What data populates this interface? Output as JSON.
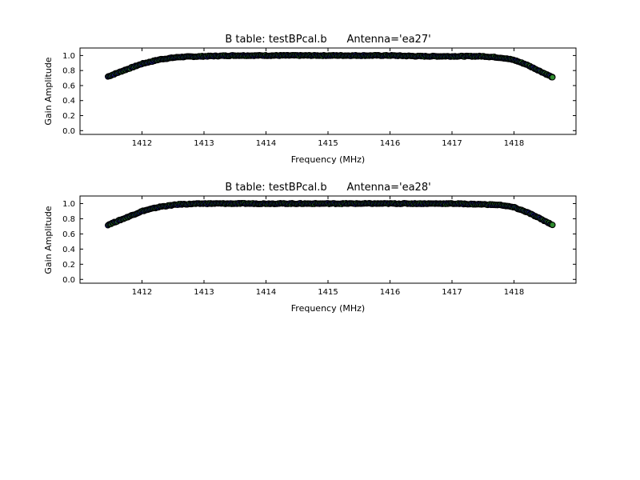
{
  "chart_data": [
    {
      "type": "scatter",
      "title": "B table: testBPcal.b      Antenna='ea27'",
      "xlabel": "Frequency (MHz)",
      "ylabel": "Gain Amplitude",
      "xlim": [
        1411.0,
        1419.0
      ],
      "ylim": [
        -0.05,
        1.1
      ],
      "xticks": [
        1412,
        1413,
        1414,
        1415,
        1416,
        1417,
        1418
      ],
      "yticks": [
        0.0,
        0.2,
        0.4,
        0.6,
        0.8,
        1.0
      ],
      "xtick_labels": [
        "1412",
        "1413",
        "1414",
        "1415",
        "1416",
        "1417",
        "1418"
      ],
      "ytick_labels": [
        "0.0",
        "0.2",
        "0.4",
        "0.6",
        "0.8",
        "1.0"
      ],
      "grid": false,
      "marker_fill_colors": [
        "#1f1f9f",
        "#2e8b2e"
      ],
      "marker_edge_color": "#000000",
      "series": [
        {
          "x": [
            1411.45,
            1411.7,
            1412.0,
            1412.3,
            1412.6,
            1413.0,
            1413.5,
            1414.0,
            1414.5,
            1415.0,
            1415.5,
            1416.0,
            1416.5,
            1417.0,
            1417.5,
            1417.8,
            1418.0,
            1418.2,
            1418.4,
            1418.62
          ],
          "y": [
            0.72,
            0.8,
            0.89,
            0.95,
            0.98,
            0.99,
            1.0,
            1.0,
            1.0,
            1.0,
            1.0,
            1.0,
            0.99,
            0.99,
            0.99,
            0.97,
            0.94,
            0.88,
            0.8,
            0.71
          ]
        }
      ]
    },
    {
      "type": "scatter",
      "title": "B table: testBPcal.b      Antenna='ea28'",
      "xlabel": "Frequency (MHz)",
      "ylabel": "Gain Amplitude",
      "xlim": [
        1411.0,
        1419.0
      ],
      "ylim": [
        -0.05,
        1.1
      ],
      "xticks": [
        1412,
        1413,
        1414,
        1415,
        1416,
        1417,
        1418
      ],
      "yticks": [
        0.0,
        0.2,
        0.4,
        0.6,
        0.8,
        1.0
      ],
      "xtick_labels": [
        "1412",
        "1413",
        "1414",
        "1415",
        "1416",
        "1417",
        "1418"
      ],
      "ytick_labels": [
        "0.0",
        "0.2",
        "0.4",
        "0.6",
        "0.8",
        "1.0"
      ],
      "grid": false,
      "marker_fill_colors": [
        "#1f1f9f",
        "#2e8b2e"
      ],
      "marker_edge_color": "#000000",
      "series": [
        {
          "x": [
            1411.45,
            1411.7,
            1412.0,
            1412.3,
            1412.6,
            1413.0,
            1413.5,
            1414.0,
            1414.5,
            1415.0,
            1415.5,
            1416.0,
            1416.5,
            1417.0,
            1417.5,
            1417.8,
            1418.0,
            1418.2,
            1418.4,
            1418.62
          ],
          "y": [
            0.72,
            0.8,
            0.9,
            0.96,
            0.99,
            1.0,
            1.0,
            1.0,
            1.0,
            1.0,
            1.0,
            1.0,
            1.0,
            1.0,
            0.99,
            0.98,
            0.95,
            0.89,
            0.81,
            0.72
          ]
        }
      ]
    }
  ]
}
